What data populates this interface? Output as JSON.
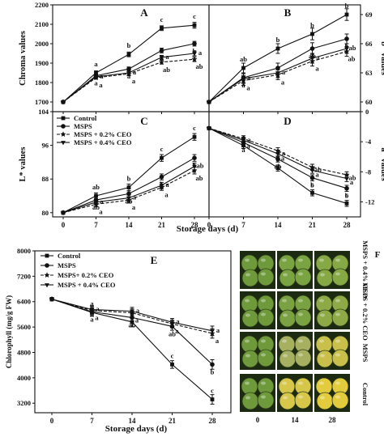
{
  "figure": {
    "xlabel_top": "Storage days (d)",
    "xlabel_bottom": "Storage days (d)"
  },
  "legend_labels": [
    "Control",
    "MSPS",
    "MSPS + 0.2% CEO",
    "MSPS + 0.4% CEO"
  ],
  "legend_labels_e": [
    "Control",
    "MSPS",
    "MSPS+ 0.2% CEO",
    "MSPS + 0.4% CEO"
  ],
  "chart_data": [
    {
      "id": "A",
      "panel_label": "A",
      "type": "line",
      "ylabel": "Chroma values",
      "yaxis_side": "left",
      "x": [
        0,
        7,
        14,
        21,
        28
      ],
      "ylim": [
        1650,
        2200
      ],
      "yticks": [
        1700,
        1800,
        1900,
        2000,
        2100,
        2200
      ],
      "series": [
        {
          "name": "Control",
          "values": [
            1700,
            1850,
            1945,
            2080,
            2095
          ],
          "err": [
            0,
            10,
            12,
            12,
            15
          ],
          "labels": [
            "",
            "a",
            "b",
            "c",
            "c"
          ]
        },
        {
          "name": "MSPS",
          "values": [
            1700,
            1835,
            1870,
            1965,
            2000
          ],
          "err": [
            0,
            8,
            10,
            12,
            12
          ],
          "labels": [
            "",
            "a",
            "a",
            "b",
            "b"
          ]
        },
        {
          "name": "MSPS + 0.2% CEO",
          "values": [
            1700,
            1825,
            1845,
            1905,
            1920
          ],
          "err": [
            0,
            8,
            10,
            10,
            12
          ],
          "labels": [
            "",
            "a",
            "a",
            "ab",
            "ab"
          ]
        },
        {
          "name": "MSPS + 0.4% CEO",
          "values": [
            1700,
            1830,
            1850,
            1930,
            1950
          ],
          "err": [
            0,
            8,
            10,
            10,
            12
          ],
          "labels": [
            "",
            "a",
            "a",
            "a",
            "a"
          ]
        }
      ]
    },
    {
      "id": "B",
      "panel_label": "B",
      "type": "line",
      "ylabel": "b* values",
      "yaxis_side": "right",
      "x": [
        0,
        7,
        14,
        21,
        28
      ],
      "ylim": [
        59,
        70
      ],
      "yticks": [
        60,
        63,
        66,
        69
      ],
      "series": [
        {
          "name": "Control",
          "values": [
            60,
            63.5,
            65.5,
            67,
            69
          ],
          "err": [
            0,
            0.5,
            0.5,
            0.6,
            0.6
          ],
          "labels": [
            "",
            "ab",
            "b",
            "b",
            "b"
          ]
        },
        {
          "name": "MSPS",
          "values": [
            60,
            62.5,
            63.5,
            65.5,
            66.5
          ],
          "err": [
            0,
            0.5,
            0.5,
            0.6,
            0.5
          ],
          "labels": [
            "",
            "a",
            "a",
            "ab",
            "b"
          ]
        },
        {
          "name": "MSPS + 0.2% CEO",
          "values": [
            60,
            62.2,
            62.8,
            64.2,
            65.2
          ],
          "err": [
            0,
            0.5,
            0.5,
            0.5,
            0.5
          ],
          "labels": [
            "",
            "a",
            "a",
            "a",
            "ab"
          ]
        },
        {
          "name": "MSPS + 0.4% CEO",
          "values": [
            60,
            62.4,
            63,
            64.5,
            65.5
          ],
          "err": [
            0,
            0.5,
            0.5,
            0.5,
            0.5
          ],
          "labels": [
            "",
            "a",
            "a",
            "a",
            "ab"
          ]
        }
      ]
    },
    {
      "id": "C",
      "panel_label": "C",
      "type": "line",
      "ylabel": "L* values",
      "yaxis_side": "left",
      "x": [
        0,
        7,
        14,
        21,
        28
      ],
      "ylim": [
        79,
        104
      ],
      "yticks": [
        80,
        88,
        96,
        104
      ],
      "series": [
        {
          "name": "Control",
          "values": [
            80,
            84,
            86,
            93,
            98
          ],
          "err": [
            0,
            0.7,
            0.8,
            0.8,
            0.8
          ],
          "labels": [
            "",
            "ab",
            "b",
            "c",
            "c"
          ]
        },
        {
          "name": "MSPS",
          "values": [
            80,
            83,
            84.5,
            88.5,
            93
          ],
          "err": [
            0,
            0.6,
            0.7,
            0.7,
            0.8
          ],
          "labels": [
            "",
            "ab",
            "ab",
            "b",
            "b"
          ]
        },
        {
          "name": "MSPS + 0.2% CEO",
          "values": [
            80,
            82,
            83,
            86,
            90
          ],
          "err": [
            0,
            0.6,
            0.7,
            0.7,
            0.8
          ],
          "labels": [
            "",
            "a",
            "a",
            "a",
            "ab"
          ]
        },
        {
          "name": "MSPS + 0.4% CEO",
          "values": [
            80,
            82.5,
            83.5,
            86.5,
            91
          ],
          "err": [
            0,
            0.6,
            0.7,
            0.7,
            0.8
          ],
          "labels": [
            "",
            "a",
            "a",
            "a",
            "ab"
          ]
        }
      ]
    },
    {
      "id": "D",
      "panel_label": "D",
      "type": "line",
      "ylabel": "a* values",
      "yaxis_side": "right",
      "x": [
        0,
        7,
        14,
        21,
        28
      ],
      "ylim": [
        -14,
        0
      ],
      "yticks": [
        0,
        -4,
        -8,
        -12
      ],
      "series": [
        {
          "name": "Control",
          "values": [
            -2.2,
            -4.5,
            -7.5,
            -10.8,
            -12.2
          ],
          "err": [
            0,
            0.4,
            0.4,
            0.4,
            0.4
          ],
          "labels": [
            "",
            "a",
            "b",
            "c",
            "c"
          ]
        },
        {
          "name": "MSPS",
          "values": [
            -2.2,
            -4.1,
            -6.3,
            -8.8,
            -10.2
          ],
          "err": [
            0,
            0.4,
            0.4,
            0.4,
            0.4
          ],
          "labels": [
            "",
            "a",
            "ab",
            "b",
            "b"
          ]
        },
        {
          "name": "MSPS + 0.2% CEO",
          "values": [
            -2.2,
            -3.6,
            -5.2,
            -7.4,
            -8.4
          ],
          "err": [
            0,
            0.4,
            0.4,
            0.4,
            0.4
          ],
          "labels": [
            "",
            "a",
            "a",
            "a",
            "a"
          ]
        },
        {
          "name": "MSPS + 0.4% CEO",
          "values": [
            -2.2,
            -3.8,
            -5.6,
            -7.8,
            -8.9
          ],
          "err": [
            0,
            0.4,
            0.4,
            0.4,
            0.4
          ],
          "labels": [
            "",
            "a",
            "a",
            "ab",
            "ab"
          ]
        }
      ]
    },
    {
      "id": "E",
      "panel_label": "E",
      "type": "line",
      "ylabel": "Chlorophyll (mg/g FW)",
      "yaxis_side": "left",
      "x": [
        0,
        7,
        14,
        21,
        28
      ],
      "ylim": [
        2900,
        8000
      ],
      "yticks": [
        3200,
        4000,
        4800,
        5600,
        6400,
        7200,
        8000
      ],
      "series": [
        {
          "name": "Control",
          "values": [
            6480,
            6060,
            5760,
            4420,
            3320
          ],
          "err": [
            50,
            120,
            150,
            120,
            150
          ],
          "labels": [
            "",
            "a",
            "b",
            "c",
            "c"
          ]
        },
        {
          "name": "MSPS",
          "values": [
            6480,
            6080,
            5900,
            5620,
            4420
          ],
          "err": [
            50,
            120,
            120,
            120,
            150
          ],
          "labels": [
            "",
            "a",
            "ab",
            "ab",
            "b"
          ]
        },
        {
          "name": "MSPS+ 0.2% CEO",
          "values": [
            6480,
            6120,
            6050,
            5700,
            5400
          ],
          "err": [
            50,
            120,
            120,
            120,
            150
          ],
          "labels": [
            "",
            "a",
            "a",
            "a",
            "a"
          ]
        },
        {
          "name": "MSPS + 0.4% CEO",
          "values": [
            6480,
            6150,
            6100,
            5750,
            5480
          ],
          "err": [
            50,
            120,
            120,
            120,
            150
          ],
          "labels": [
            "",
            "a",
            "a",
            "a",
            "a"
          ]
        }
      ]
    }
  ],
  "photo_panel": {
    "label": "F",
    "row_labels": [
      "MSPS + 0.4% CEO",
      "MSPS + 0.2% CEO",
      "MSPS",
      "Control"
    ],
    "col_labels": [
      "0",
      "14",
      "28"
    ],
    "row_colors": [
      [
        "#6f9a3b",
        "#7aa341",
        "#86a845"
      ],
      [
        "#6f9a3b",
        "#7ba242",
        "#8daa47"
      ],
      [
        "#6f9a3b",
        "#a7b061",
        "#c8c04a"
      ],
      [
        "#6f9a3b",
        "#d6c64a",
        "#e2cc3e"
      ]
    ]
  }
}
